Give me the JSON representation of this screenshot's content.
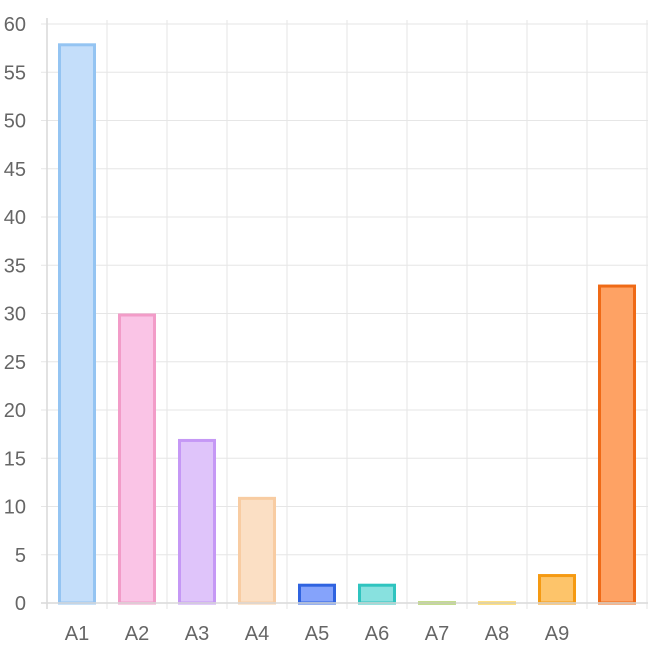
{
  "chart_data": {
    "type": "bar",
    "categories": [
      "A1",
      "A2",
      "A3",
      "A4",
      "A5",
      "A6",
      "A7",
      "A8",
      "A9",
      ""
    ],
    "values": [
      58,
      30,
      17,
      11,
      2,
      2,
      0,
      0,
      3,
      33
    ],
    "ylim": [
      0,
      60
    ],
    "yticks": [
      0,
      5,
      10,
      15,
      20,
      25,
      30,
      35,
      40,
      45,
      50,
      55,
      60
    ],
    "grid": true,
    "legend": "none",
    "bar_fill_colors": [
      "#c4defa",
      "#fac4e6",
      "#dfc4fa",
      "#fbdfc4",
      "#85a3fb",
      "#88e1df",
      "#a9cc3a",
      "#ffd34d",
      "#fdc46a",
      "#fea264"
    ],
    "bar_border_colors": [
      "#94c4f2",
      "#f29cc8",
      "#c598f5",
      "#f8cca2",
      "#2f63e0",
      "#2fc4bf",
      "#8ab81e",
      "#ffc107",
      "#f59a12",
      "#ef6a16"
    ]
  }
}
